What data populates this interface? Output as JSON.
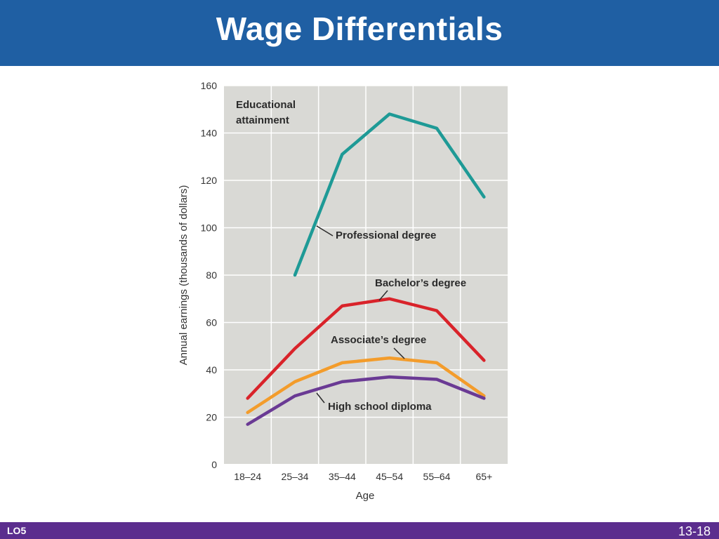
{
  "slide": {
    "title": "Wage Differentials",
    "footer_left": "LO5",
    "page_number": "13-18"
  },
  "colors": {
    "header_bg": "#1f5fa3",
    "footer_bg": "#5b2d8e",
    "plot_bg": "#d9d9d5"
  },
  "chart_data": {
    "type": "line",
    "title": "",
    "xlabel": "Age",
    "ylabel": "Annual earnings (thousands of dollars)",
    "ylim": [
      0,
      160
    ],
    "yticks": [
      0,
      20,
      40,
      60,
      80,
      100,
      120,
      140,
      160
    ],
    "categories": [
      "18–24",
      "25–34",
      "35–44",
      "45–54",
      "55–64",
      "65+"
    ],
    "grid": true,
    "legend_title": "Educational\nattainment",
    "legend_title_lines": [
      "Educational",
      "attainment"
    ],
    "series": [
      {
        "name": "Professional degree",
        "color": "#1e9a96",
        "values": [
          null,
          80,
          131,
          148,
          142,
          113
        ]
      },
      {
        "name": "Bachelor’s degree",
        "color": "#d9232a",
        "values": [
          28,
          49,
          67,
          70,
          65,
          44
        ]
      },
      {
        "name": "Associate’s degree",
        "color": "#f39c2b",
        "values": [
          22,
          35,
          43,
          45,
          43,
          29
        ]
      },
      {
        "name": "High school diploma",
        "color": "#6a3a94",
        "values": [
          17,
          29,
          35,
          37,
          36,
          28
        ]
      }
    ]
  }
}
